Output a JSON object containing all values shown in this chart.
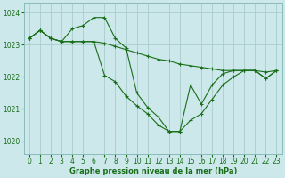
{
  "background_color": "#cce8ea",
  "plot_background": "#cce8ea",
  "grid_color": "#aacccc",
  "line_color": "#1a6e1a",
  "marker_color": "#1a6e1a",
  "xlabel": "Graphe pression niveau de la mer (hPa)",
  "ylim": [
    1019.6,
    1024.3
  ],
  "xlim": [
    -0.5,
    23.5
  ],
  "yticks": [
    1020,
    1021,
    1022,
    1023,
    1024
  ],
  "xticks": [
    0,
    1,
    2,
    3,
    4,
    5,
    6,
    7,
    8,
    9,
    10,
    11,
    12,
    13,
    14,
    15,
    16,
    17,
    18,
    19,
    20,
    21,
    22,
    23
  ],
  "series": [
    {
      "x": [
        0,
        1,
        2,
        3,
        4,
        5,
        6,
        7,
        8,
        9,
        10,
        11,
        12,
        13,
        14,
        15,
        16,
        17,
        18,
        19,
        20,
        21,
        22,
        23
      ],
      "y": [
        1023.2,
        1023.45,
        1023.2,
        1023.1,
        1023.1,
        1023.1,
        1023.1,
        1023.05,
        1022.95,
        1022.85,
        1022.75,
        1022.65,
        1022.55,
        1022.5,
        1022.4,
        1022.35,
        1022.3,
        1022.25,
        1022.2,
        1022.2,
        1022.2,
        1022.2,
        1022.15,
        1022.2
      ]
    },
    {
      "x": [
        0,
        1,
        2,
        3,
        4,
        5,
        6,
        7,
        8,
        9,
        10,
        11,
        12,
        13,
        14,
        15,
        16,
        17,
        18,
        19,
        20,
        21,
        22,
        23
      ],
      "y": [
        1023.2,
        1023.45,
        1023.2,
        1023.1,
        1023.5,
        1023.6,
        1023.85,
        1023.85,
        1023.2,
        1022.9,
        1021.5,
        1021.05,
        1020.75,
        1020.3,
        1020.3,
        1020.65,
        1020.85,
        1021.3,
        1021.75,
        1022.0,
        1022.2,
        1022.2,
        1021.95,
        1022.2
      ]
    },
    {
      "x": [
        0,
        1,
        2,
        3,
        4,
        5,
        6,
        7,
        8,
        9,
        10,
        11,
        12,
        13,
        14,
        15,
        16,
        17,
        18,
        19,
        20,
        21,
        22,
        23
      ],
      "y": [
        1023.2,
        1023.45,
        1023.2,
        1023.1,
        1023.1,
        1023.1,
        1023.1,
        1022.05,
        1021.85,
        1021.4,
        1021.1,
        1020.85,
        1020.5,
        1020.3,
        1020.3,
        1021.75,
        1021.15,
        1021.75,
        1022.1,
        1022.2,
        1022.2,
        1022.2,
        1021.95,
        1022.2
      ]
    }
  ]
}
